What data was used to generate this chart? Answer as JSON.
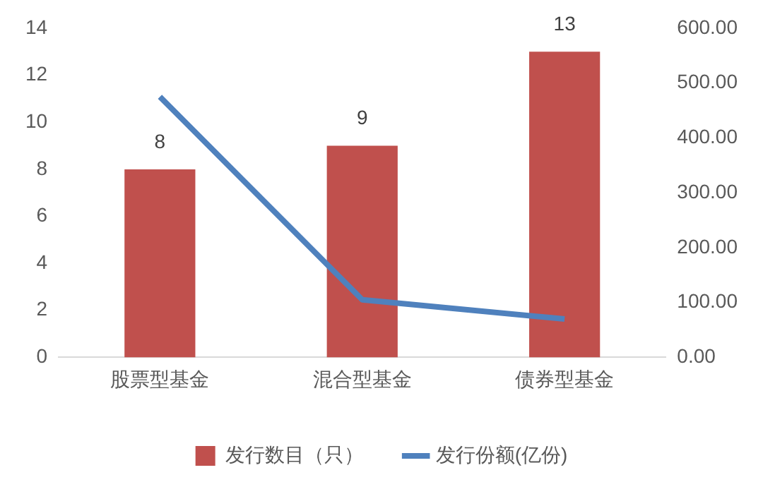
{
  "chart_data": {
    "type": "bar",
    "categories": [
      "股票型基金",
      "混合型基金",
      "债券型基金"
    ],
    "series": [
      {
        "name": "发行数目（只）",
        "color": "#c0504d",
        "values": [
          8,
          9,
          13
        ],
        "value_labels": [
          "8",
          "9",
          "13"
        ]
      },
      {
        "name": "发行份额(亿份)",
        "type": "line",
        "axis": "y2",
        "color": "#4f81bd",
        "values": [
          475,
          105,
          70
        ]
      }
    ],
    "ylim": [
      0,
      14
    ],
    "yticks": [
      0,
      2,
      4,
      6,
      8,
      10,
      12,
      14
    ],
    "y2lim": [
      0,
      600
    ],
    "y2ticks": [
      {
        "value": 0,
        "label": "0.00"
      },
      {
        "value": 100,
        "label": "100.00"
      },
      {
        "value": 200,
        "label": "200.00"
      },
      {
        "value": 300,
        "label": "300.00"
      },
      {
        "value": 400,
        "label": "400.00"
      },
      {
        "value": 500,
        "label": "500.00"
      },
      {
        "value": 600,
        "label": "600.00"
      }
    ],
    "grid": false,
    "legend": "bottom",
    "marker": "none"
  }
}
